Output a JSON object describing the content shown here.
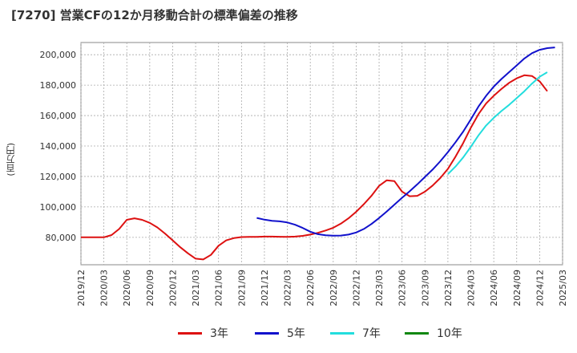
{
  "title": "[7270]  営業CFの12か月移動合計の標準偏差の推移",
  "y_axis_label": "(百万円)",
  "colors": {
    "3年": "#dd1111",
    "5年": "#1111cc",
    "7年": "#22dddd",
    "10年": "#118811",
    "grid": "#aaaaaa",
    "plot_bg": "#ffffff"
  },
  "chart_data": {
    "type": "line",
    "title": "[7270]  営業CFの12か月移動合計の標準偏差の推移",
    "ylabel": "(百万円)",
    "ylim": [
      62000,
      208000
    ],
    "y_ticks": [
      80000,
      100000,
      120000,
      140000,
      160000,
      180000,
      200000
    ],
    "y_tick_labels": [
      "80,000",
      "100,000",
      "120,000",
      "140,000",
      "160,000",
      "180,000",
      "200,000"
    ],
    "x_ticks": [
      "2019/12",
      "2020/03",
      "2020/06",
      "2020/09",
      "2020/12",
      "2021/03",
      "2021/06",
      "2021/09",
      "2021/12",
      "2022/03",
      "2022/06",
      "2022/09",
      "2022/12",
      "2023/03",
      "2023/06",
      "2023/09",
      "2023/12",
      "2024/03",
      "2024/06",
      "2024/09",
      "2024/12",
      "2025/03"
    ],
    "grid": true,
    "legend_position": "bottom",
    "series": [
      {
        "name": "3年",
        "color": "#dd1111",
        "points": [
          [
            "2019/12",
            80000
          ],
          [
            "2020/01",
            80000
          ],
          [
            "2020/02",
            80000
          ],
          [
            "2020/03",
            80000
          ],
          [
            "2020/04",
            81500
          ],
          [
            "2020/05",
            85500
          ],
          [
            "2020/06",
            91500
          ],
          [
            "2020/07",
            92500
          ],
          [
            "2020/08",
            91500
          ],
          [
            "2020/09",
            89500
          ],
          [
            "2020/10",
            86500
          ],
          [
            "2020/11",
            82500
          ],
          [
            "2020/12",
            78000
          ],
          [
            "2021/01",
            73500
          ],
          [
            "2021/02",
            69500
          ],
          [
            "2021/03",
            66000
          ],
          [
            "2021/04",
            65500
          ],
          [
            "2021/05",
            68500
          ],
          [
            "2021/06",
            74500
          ],
          [
            "2021/07",
            78000
          ],
          [
            "2021/08",
            79500
          ],
          [
            "2021/09",
            80200
          ],
          [
            "2021/10",
            80300
          ],
          [
            "2021/11",
            80300
          ],
          [
            "2021/12",
            80500
          ],
          [
            "2022/01",
            80500
          ],
          [
            "2022/02",
            80400
          ],
          [
            "2022/03",
            80300
          ],
          [
            "2022/04",
            80500
          ],
          [
            "2022/05",
            81000
          ],
          [
            "2022/06",
            81800
          ],
          [
            "2022/07",
            83000
          ],
          [
            "2022/08",
            84500
          ],
          [
            "2022/09",
            86300
          ],
          [
            "2022/10",
            89000
          ],
          [
            "2022/11",
            92500
          ],
          [
            "2022/12",
            96800
          ],
          [
            "2023/01",
            101800
          ],
          [
            "2023/02",
            107300
          ],
          [
            "2023/03",
            113800
          ],
          [
            "2023/04",
            117500
          ],
          [
            "2023/05",
            117000
          ],
          [
            "2023/06",
            110000
          ],
          [
            "2023/07",
            107000
          ],
          [
            "2023/08",
            107300
          ],
          [
            "2023/09",
            110000
          ],
          [
            "2023/10",
            114000
          ],
          [
            "2023/11",
            119000
          ],
          [
            "2023/12",
            125000
          ],
          [
            "2024/01",
            133000
          ],
          [
            "2024/02",
            142000
          ],
          [
            "2024/03",
            152000
          ],
          [
            "2024/04",
            161000
          ],
          [
            "2024/05",
            168000
          ],
          [
            "2024/06",
            173000
          ],
          [
            "2024/07",
            177500
          ],
          [
            "2024/08",
            181500
          ],
          [
            "2024/09",
            184500
          ],
          [
            "2024/10",
            186500
          ],
          [
            "2024/11",
            186000
          ],
          [
            "2024/12",
            182500
          ],
          [
            "2025/01",
            176000
          ]
        ]
      },
      {
        "name": "5年",
        "color": "#1111cc",
        "points": [
          [
            "2021/11",
            92800
          ],
          [
            "2021/12",
            91600
          ],
          [
            "2022/01",
            90900
          ],
          [
            "2022/02",
            90500
          ],
          [
            "2022/03",
            89800
          ],
          [
            "2022/04",
            88300
          ],
          [
            "2022/05",
            86200
          ],
          [
            "2022/06",
            83700
          ],
          [
            "2022/07",
            82100
          ],
          [
            "2022/08",
            81400
          ],
          [
            "2022/09",
            81100
          ],
          [
            "2022/10",
            81200
          ],
          [
            "2022/11",
            81800
          ],
          [
            "2022/12",
            83200
          ],
          [
            "2023/01",
            85500
          ],
          [
            "2023/02",
            88800
          ],
          [
            "2023/03",
            92700
          ],
          [
            "2023/04",
            97000
          ],
          [
            "2023/05",
            101500
          ],
          [
            "2023/06",
            106000
          ],
          [
            "2023/07",
            110300
          ],
          [
            "2023/08",
            114800
          ],
          [
            "2023/09",
            119700
          ],
          [
            "2023/10",
            124500
          ],
          [
            "2023/11",
            130000
          ],
          [
            "2023/12",
            136000
          ],
          [
            "2024/01",
            142500
          ],
          [
            "2024/02",
            149500
          ],
          [
            "2024/03",
            157500
          ],
          [
            "2024/04",
            166000
          ],
          [
            "2024/05",
            173000
          ],
          [
            "2024/06",
            179000
          ],
          [
            "2024/07",
            184000
          ],
          [
            "2024/08",
            188500
          ],
          [
            "2024/09",
            193000
          ],
          [
            "2024/10",
            197500
          ],
          [
            "2024/11",
            201000
          ],
          [
            "2024/12",
            203200
          ],
          [
            "2025/01",
            204300
          ],
          [
            "2025/02",
            204800
          ]
        ]
      },
      {
        "name": "7年",
        "color": "#22dddd",
        "points": [
          [
            "2023/12",
            121500
          ],
          [
            "2024/01",
            126500
          ],
          [
            "2024/02",
            132500
          ],
          [
            "2024/03",
            139500
          ],
          [
            "2024/04",
            147000
          ],
          [
            "2024/05",
            153500
          ],
          [
            "2024/06",
            158500
          ],
          [
            "2024/07",
            163000
          ],
          [
            "2024/08",
            167000
          ],
          [
            "2024/09",
            171500
          ],
          [
            "2024/10",
            176000
          ],
          [
            "2024/11",
            181000
          ],
          [
            "2024/12",
            185500
          ],
          [
            "2025/01",
            188500
          ]
        ]
      },
      {
        "name": "10年",
        "color": "#118811",
        "points": []
      }
    ]
  },
  "legend": [
    {
      "label": "3年",
      "color": "#dd1111"
    },
    {
      "label": "5年",
      "color": "#1111cc"
    },
    {
      "label": "7年",
      "color": "#22dddd"
    },
    {
      "label": "10年",
      "color": "#118811"
    }
  ]
}
